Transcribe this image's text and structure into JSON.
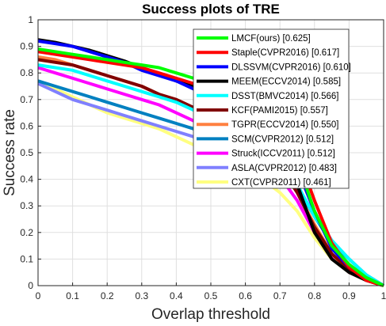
{
  "chart_data": {
    "type": "line",
    "title": "Success plots of TRE",
    "xlabel": "Overlap threshold",
    "ylabel": "Success rate",
    "xlim": [
      0,
      1
    ],
    "ylim": [
      0,
      1
    ],
    "xticks": [
      "0",
      "0.1",
      "0.2",
      "0.3",
      "0.4",
      "0.5",
      "0.6",
      "0.7",
      "0.8",
      "0.9",
      "1"
    ],
    "yticks": [
      "0",
      "0.1",
      "0.2",
      "0.3",
      "0.4",
      "0.5",
      "0.6",
      "0.7",
      "0.8",
      "0.9",
      "1"
    ],
    "grid": true,
    "legend_position": "top-right",
    "x": [
      0,
      0.05,
      0.1,
      0.15,
      0.2,
      0.25,
      0.3,
      0.35,
      0.4,
      0.45,
      0.5,
      0.55,
      0.6,
      0.65,
      0.7,
      0.75,
      0.8,
      0.85,
      0.9,
      0.95,
      1
    ],
    "series": [
      {
        "name": "LMCF(ours) [0.625]",
        "color": "#00ff00",
        "values": [
          0.89,
          0.88,
          0.87,
          0.86,
          0.85,
          0.84,
          0.83,
          0.82,
          0.8,
          0.78,
          0.77,
          0.75,
          0.71,
          0.66,
          0.58,
          0.47,
          0.28,
          0.15,
          0.08,
          0.03,
          0.0
        ]
      },
      {
        "name": "Staple(CVPR2016) [0.617]",
        "color": "#ff0000",
        "values": [
          0.88,
          0.87,
          0.86,
          0.85,
          0.84,
          0.83,
          0.82,
          0.8,
          0.78,
          0.76,
          0.74,
          0.72,
          0.69,
          0.65,
          0.58,
          0.5,
          0.32,
          0.16,
          0.07,
          0.02,
          0.0
        ]
      },
      {
        "name": "DLSSVM(CVPR2016) [0.610]",
        "color": "#0000ff",
        "values": [
          0.92,
          0.91,
          0.9,
          0.88,
          0.86,
          0.84,
          0.81,
          0.79,
          0.77,
          0.74,
          0.72,
          0.69,
          0.66,
          0.62,
          0.56,
          0.44,
          0.28,
          0.14,
          0.07,
          0.03,
          0.0
        ]
      },
      {
        "name": "MEEM(ECCV2014) [0.585]",
        "color": "#000000",
        "values": [
          0.925,
          0.915,
          0.9,
          0.885,
          0.865,
          0.845,
          0.82,
          0.795,
          0.77,
          0.75,
          0.72,
          0.69,
          0.65,
          0.6,
          0.53,
          0.38,
          0.2,
          0.1,
          0.05,
          0.02,
          0.0
        ]
      },
      {
        "name": "DSST(BMVC2014) [0.566]",
        "color": "#00ffff",
        "values": [
          0.83,
          0.82,
          0.81,
          0.79,
          0.77,
          0.75,
          0.73,
          0.71,
          0.69,
          0.66,
          0.63,
          0.6,
          0.57,
          0.53,
          0.47,
          0.38,
          0.26,
          0.17,
          0.1,
          0.04,
          0.0
        ]
      },
      {
        "name": "KCF(PAMI2015) [0.557]",
        "color": "#800000",
        "values": [
          0.85,
          0.84,
          0.83,
          0.81,
          0.79,
          0.77,
          0.75,
          0.72,
          0.7,
          0.67,
          0.64,
          0.61,
          0.57,
          0.52,
          0.45,
          0.35,
          0.22,
          0.12,
          0.06,
          0.02,
          0.0
        ]
      },
      {
        "name": "TGPR(ECCV2014) [0.550]",
        "color": "#ff8040",
        "values": [
          0.86,
          0.85,
          0.83,
          0.81,
          0.79,
          0.77,
          0.75,
          0.72,
          0.7,
          0.67,
          0.64,
          0.61,
          0.57,
          0.52,
          0.45,
          0.35,
          0.23,
          0.12,
          0.05,
          0.02,
          0.0
        ]
      },
      {
        "name": "SCM(CVPR2012) [0.512]",
        "color": "#0080c0",
        "values": [
          0.77,
          0.75,
          0.73,
          0.71,
          0.69,
          0.67,
          0.65,
          0.63,
          0.61,
          0.59,
          0.57,
          0.55,
          0.52,
          0.49,
          0.45,
          0.37,
          0.26,
          0.16,
          0.1,
          0.04,
          0.0
        ]
      },
      {
        "name": "Struck(ICCV2011) [0.512]",
        "color": "#ff00ff",
        "values": [
          0.82,
          0.8,
          0.78,
          0.76,
          0.74,
          0.72,
          0.7,
          0.68,
          0.65,
          0.62,
          0.59,
          0.56,
          0.52,
          0.47,
          0.41,
          0.32,
          0.2,
          0.11,
          0.05,
          0.02,
          0.0
        ]
      },
      {
        "name": "ASLA(CVPR2012) [0.483]",
        "color": "#8080ff",
        "values": [
          0.76,
          0.73,
          0.7,
          0.68,
          0.66,
          0.64,
          0.62,
          0.6,
          0.58,
          0.56,
          0.54,
          0.52,
          0.5,
          0.47,
          0.43,
          0.37,
          0.27,
          0.17,
          0.1,
          0.04,
          0.0
        ]
      },
      {
        "name": "CXT(CVPR2011) [0.461]",
        "color": "#ffff80",
        "values": [
          0.77,
          0.74,
          0.71,
          0.68,
          0.65,
          0.63,
          0.61,
          0.59,
          0.56,
          0.53,
          0.5,
          0.47,
          0.44,
          0.4,
          0.35,
          0.28,
          0.18,
          0.1,
          0.05,
          0.02,
          0.0
        ]
      }
    ]
  }
}
